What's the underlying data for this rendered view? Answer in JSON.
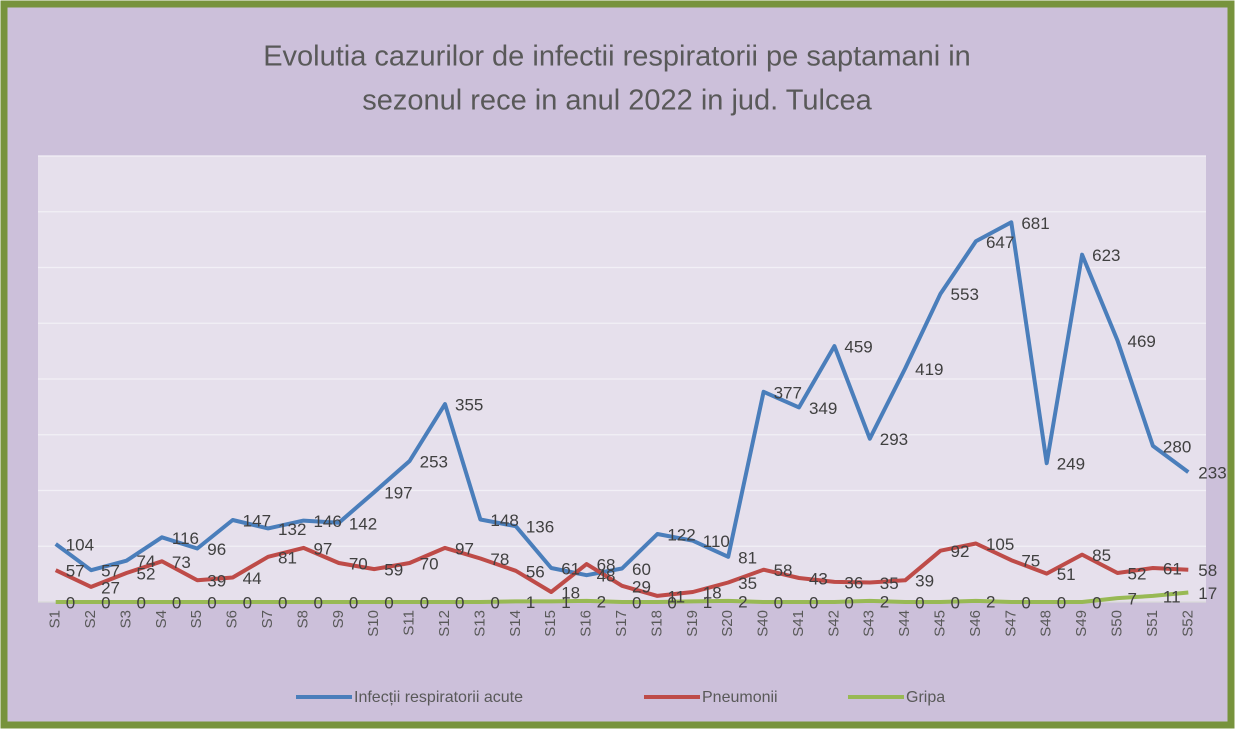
{
  "chart_data": {
    "type": "line",
    "title": [
      "Evolutia cazurilor de infectii respiratorii pe saptamani in",
      "sezonul rece in anul 2022 in jud. Tulcea"
    ],
    "categories": [
      "S1",
      "S2",
      "S3",
      "S4",
      "S5",
      "S6",
      "S7",
      "S8",
      "S9",
      "S10",
      "S11",
      "S12",
      "S13",
      "S14",
      "S15",
      "S16",
      "S17",
      "S18",
      "S19",
      "S20",
      "S40",
      "S41",
      "S42",
      "S43",
      "S44",
      "S45",
      "S46",
      "S47",
      "S48",
      "S49",
      "S50",
      "S51",
      "S52"
    ],
    "series": [
      {
        "name": "Infecții respiratorii acute",
        "color": "#4a7ebb",
        "values": [
          104,
          57,
          74,
          116,
          96,
          147,
          132,
          146,
          142,
          197,
          253,
          355,
          148,
          136,
          61,
          48,
          60,
          122,
          110,
          81,
          377,
          349,
          459,
          293,
          419,
          553,
          647,
          681,
          249,
          623,
          469,
          280,
          233
        ]
      },
      {
        "name": "Pneumonii",
        "color": "#be4b48",
        "values": [
          57,
          27,
          52,
          73,
          39,
          44,
          81,
          97,
          70,
          59,
          70,
          97,
          78,
          56,
          18,
          68,
          29,
          11,
          18,
          35,
          58,
          43,
          36,
          35,
          39,
          92,
          105,
          75,
          51,
          85,
          52,
          61,
          58
        ]
      },
      {
        "name": "Gripa",
        "color": "#98b954",
        "values": [
          0,
          0,
          0,
          0,
          0,
          0,
          0,
          0,
          0,
          0,
          0,
          0,
          0,
          1,
          1,
          2,
          0,
          0,
          1,
          2,
          0,
          0,
          0,
          2,
          0,
          0,
          2,
          0,
          0,
          0,
          7,
          11,
          17
        ]
      }
    ],
    "ylim": [
      0,
      800
    ],
    "yticks": [
      0,
      100,
      200,
      300,
      400,
      500,
      600,
      700,
      800
    ],
    "grid": true,
    "legend": "bottom"
  }
}
